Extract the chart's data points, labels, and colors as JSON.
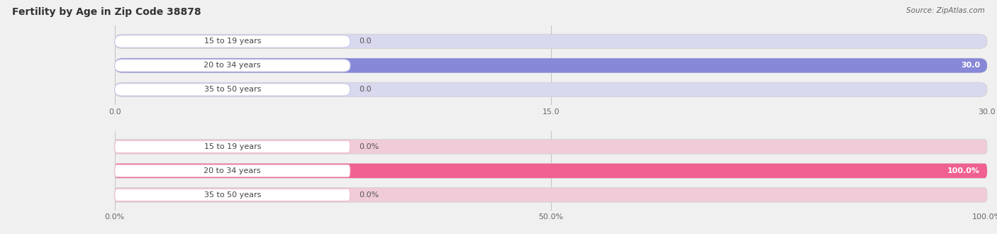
{
  "title": "Fertility by Age in Zip Code 38878",
  "source": "Source: ZipAtlas.com",
  "top_chart": {
    "categories": [
      "15 to 19 years",
      "20 to 34 years",
      "35 to 50 years"
    ],
    "values": [
      0.0,
      30.0,
      0.0
    ],
    "xlim": [
      0,
      30.0
    ],
    "xticks": [
      0.0,
      15.0,
      30.0
    ],
    "xtick_labels": [
      "0.0",
      "15.0",
      "30.0"
    ],
    "bar_color": "#8888d8",
    "bar_bg_color": "#d8d8ee",
    "label_values": [
      "0.0",
      "30.0",
      "0.0"
    ]
  },
  "bottom_chart": {
    "categories": [
      "15 to 19 years",
      "20 to 34 years",
      "35 to 50 years"
    ],
    "values": [
      0.0,
      100.0,
      0.0
    ],
    "xlim": [
      0,
      100.0
    ],
    "xticks": [
      0.0,
      50.0,
      100.0
    ],
    "xtick_labels": [
      "0.0%",
      "50.0%",
      "100.0%"
    ],
    "bar_color": "#f06090",
    "bar_bg_color": "#f0ccd8",
    "label_values": [
      "0.0%",
      "100.0%",
      "0.0%"
    ]
  },
  "fig_bg_color": "#f0f0f0",
  "label_fontsize": 8,
  "tick_fontsize": 8,
  "title_fontsize": 10,
  "category_fontsize": 8,
  "bar_height": 0.6,
  "label_color_inside": "#ffffff",
  "label_color_outside": "#555555",
  "label_pill_color_top": "#c8c8e8",
  "label_pill_color_bottom": "#f0b8cc"
}
